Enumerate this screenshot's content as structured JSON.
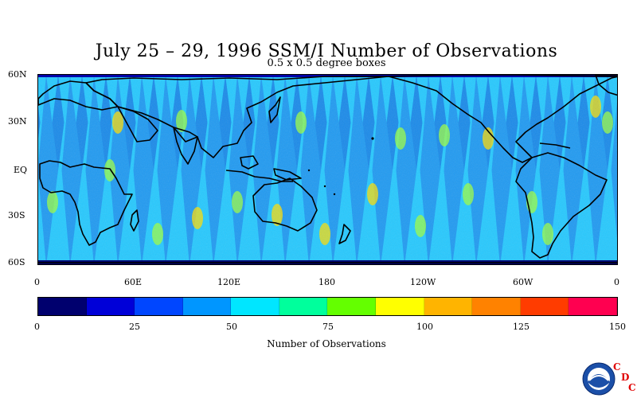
{
  "title": "July 25 – 29, 1996 SSM/I Number of Observations",
  "subtitle": "0.5 x 0.5 degree boxes",
  "y_axis_labels": [
    "60N",
    "30N",
    "EQ",
    "30S",
    "60S"
  ],
  "x_axis_labels": [
    "0",
    "60E",
    "120E",
    "180",
    "120W",
    "60W",
    "0"
  ],
  "colorbar": {
    "title": "Number of Observations",
    "tick_labels": [
      "0",
      "25",
      "50",
      "75",
      "100",
      "125",
      "150"
    ],
    "colors": [
      "#00006e",
      "#0000d8",
      "#0046ff",
      "#0096ff",
      "#00e6ff",
      "#00ff9c",
      "#64ff00",
      "#ffff00",
      "#ffb400",
      "#ff8200",
      "#ff3c00",
      "#ff0050"
    ]
  },
  "logo": {
    "noaa_icon": "noaa-logo-icon",
    "cdc_letters": [
      "C",
      "D",
      "C"
    ]
  }
}
